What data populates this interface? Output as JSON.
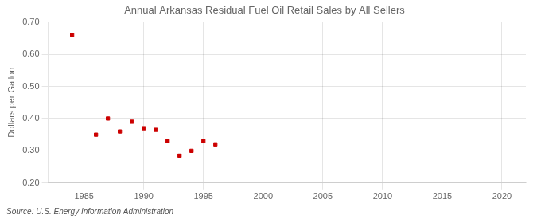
{
  "chart_data": {
    "type": "scatter",
    "title": "Annual Arkansas Residual Fuel Oil Retail Sales by All Sellers",
    "ylabel": "Dollars per Gallon",
    "annotations": [
      "Source: U.S. Energy Information Administration"
    ],
    "x": [
      1984,
      1986,
      1987,
      1988,
      1989,
      1990,
      1991,
      1992,
      1993,
      1994,
      1995,
      1996
    ],
    "values": [
      0.66,
      0.35,
      0.4,
      0.36,
      0.39,
      0.37,
      0.365,
      0.33,
      0.285,
      0.3,
      0.33,
      0.32
    ],
    "color": "#cc0000",
    "marker": "square",
    "xlim": [
      1982,
      2022
    ],
    "xticks": [
      1985,
      1990,
      1995,
      2000,
      2005,
      2010,
      2015,
      2020
    ],
    "ylim": [
      0.2,
      0.7
    ],
    "yticks": [
      {
        "value": 0.2,
        "label": "0.20"
      },
      {
        "value": 0.3,
        "label": "0.30"
      },
      {
        "value": 0.4,
        "label": "0.40"
      },
      {
        "value": 0.5,
        "label": "0.50"
      },
      {
        "value": 0.6,
        "label": "0.60"
      },
      {
        "value": 0.7,
        "label": "0.70"
      }
    ],
    "grid": true
  }
}
